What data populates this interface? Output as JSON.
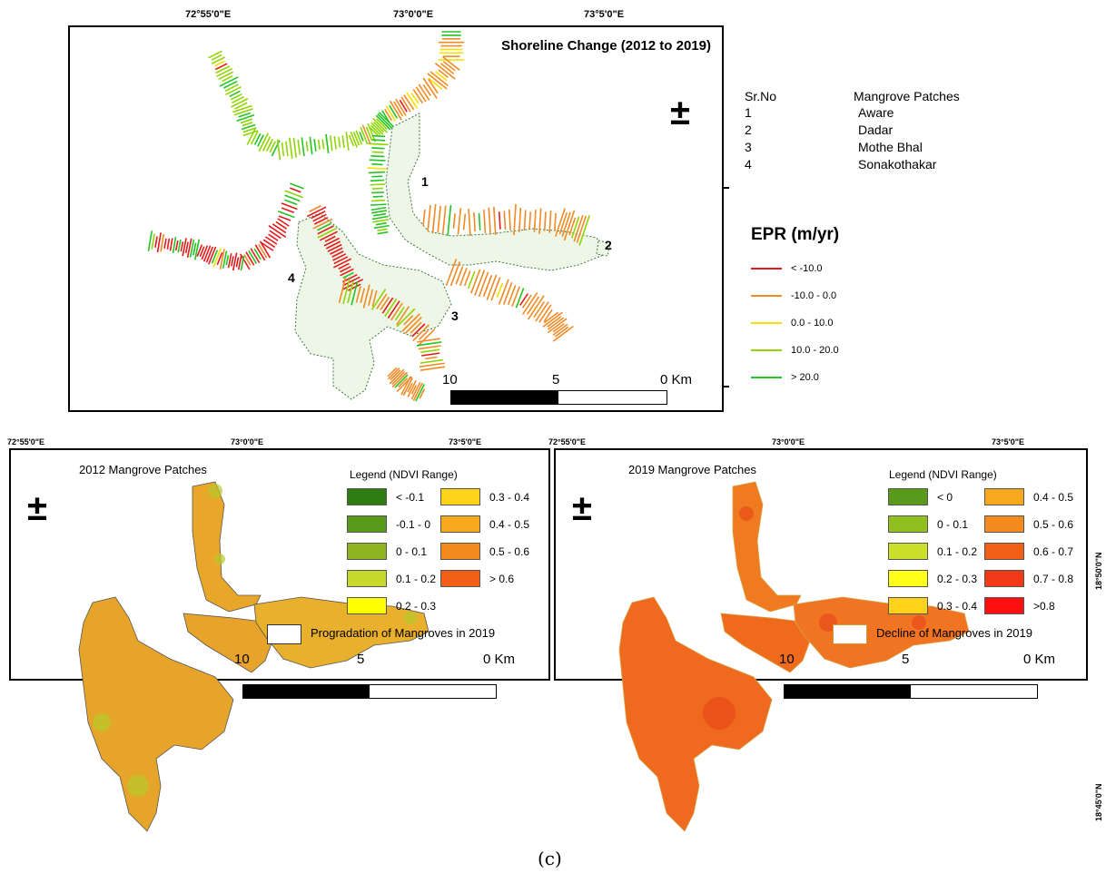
{
  "top_map": {
    "title": "Shoreline Change (2012 to 2019)",
    "lon_ticks": [
      "72°55'0\"E",
      "73°0'0\"E",
      "73°5'0\"E"
    ],
    "patch_numbers": [
      "1",
      "2",
      "3",
      "4"
    ],
    "scale": {
      "left": "10",
      "mid": "5",
      "right": "0",
      "unit": "Km"
    },
    "north_symbol": "±"
  },
  "patch_table": {
    "header_col1": "Sr.No",
    "header_col2": "Mangrove Patches",
    "rows": [
      {
        "no": "1",
        "name": "Aware"
      },
      {
        "no": "2",
        "name": "Dadar"
      },
      {
        "no": "3",
        "name": "Mothe Bhal"
      },
      {
        "no": "4",
        "name": "Sonakothakar"
      }
    ]
  },
  "epr_legend": {
    "title": "EPR (m/yr)",
    "items": [
      {
        "label": "< -10.0",
        "color": "#e31a1c"
      },
      {
        "label": "-10.0 - 0.0",
        "color": "#f08a24"
      },
      {
        "label": "0.0 - 10.0",
        "color": "#f5e000"
      },
      {
        "label": "10.0 - 20.0",
        "color": "#8fd400"
      },
      {
        "label": "> 20.0",
        "color": "#22c322"
      }
    ]
  },
  "left_map": {
    "title": "2012 Mangrove Patches",
    "legend_title": "Legend (NDVI Range)",
    "lon_ticks": [
      "72°55'0\"E",
      "73°0'0\"E",
      "73°5'0\"E"
    ],
    "legend_left": [
      {
        "label": "< -0.1",
        "color": "#2e7d10"
      },
      {
        "label": "-0.1 - 0",
        "color": "#5a9a1a"
      },
      {
        "label": "0 - 0.1",
        "color": "#8fb520"
      },
      {
        "label": "0.1 - 0.2",
        "color": "#c8d82a"
      },
      {
        "label": "0.2 - 0.3",
        "color": "#ffff00"
      }
    ],
    "legend_right": [
      {
        "label": "0.3 - 0.4",
        "color": "#ffd21a"
      },
      {
        "label": "0.4 - 0.5",
        "color": "#f7a81c"
      },
      {
        "label": "0.5 - 0.6",
        "color": "#f28a1e"
      },
      {
        "label": "> 0.6",
        "color": "#f26018"
      }
    ],
    "change_legend": "Progradation of Mangroves in 2019",
    "scale": {
      "left": "10",
      "mid": "5",
      "right": "0",
      "unit": "Km"
    },
    "north_symbol": "±"
  },
  "right_map": {
    "title": "2019 Mangrove Patches",
    "legend_title": "Legend (NDVI Range)",
    "lon_ticks": [
      "72°55'0\"E",
      "73°0'0\"E",
      "73°5'0\"E"
    ],
    "lat_ticks": [
      "18°50'0\"N",
      "18°45'0\"N"
    ],
    "legend_left": [
      {
        "label": "< 0",
        "color": "#5a9a1a"
      },
      {
        "label": "0 - 0.1",
        "color": "#8fc020"
      },
      {
        "label": "0.1 - 0.2",
        "color": "#cce02a"
      },
      {
        "label": "0.2 - 0.3",
        "color": "#ffff1a"
      },
      {
        "label": "0.3 - 0.4",
        "color": "#ffd21a"
      }
    ],
    "legend_right": [
      {
        "label": "0.4 - 0.5",
        "color": "#f7a81c"
      },
      {
        "label": "0.5 - 0.6",
        "color": "#f58a1e"
      },
      {
        "label": "0.6 - 0.7",
        "color": "#f26018"
      },
      {
        "label": "0.7 - 0.8",
        "color": "#f23a18"
      },
      {
        "label": ">0.8",
        "color": "#ff1010"
      }
    ],
    "change_legend": "Decline of Mangroves in 2019",
    "scale": {
      "left": "10",
      "mid": "5",
      "right": "0",
      "unit": "Km"
    },
    "north_symbol": "±"
  },
  "caption": "(c)"
}
